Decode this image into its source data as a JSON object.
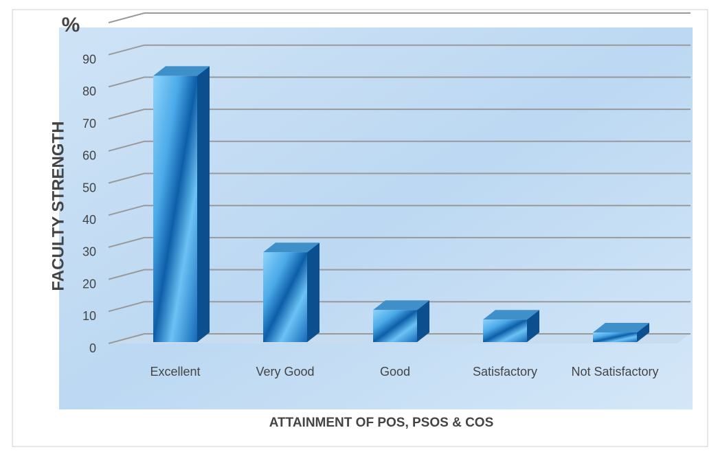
{
  "chart_data": {
    "type": "bar3d",
    "unit_label": "%",
    "y_axis_label": "FACULTY STRENGTH",
    "x_axis_label": "ATTAINMENT OF POS, PSOS & COS",
    "categories": [
      "Excellent",
      "Very Good",
      "Good",
      "Satisfactory",
      "Not Satisfactory"
    ],
    "values": [
      83,
      28,
      10,
      7,
      3
    ],
    "color": "#1f7fd0",
    "ylim": [
      0,
      100
    ],
    "yticks": [
      0,
      10,
      20,
      30,
      40,
      50,
      60,
      70,
      80,
      90
    ],
    "grid": true
  }
}
